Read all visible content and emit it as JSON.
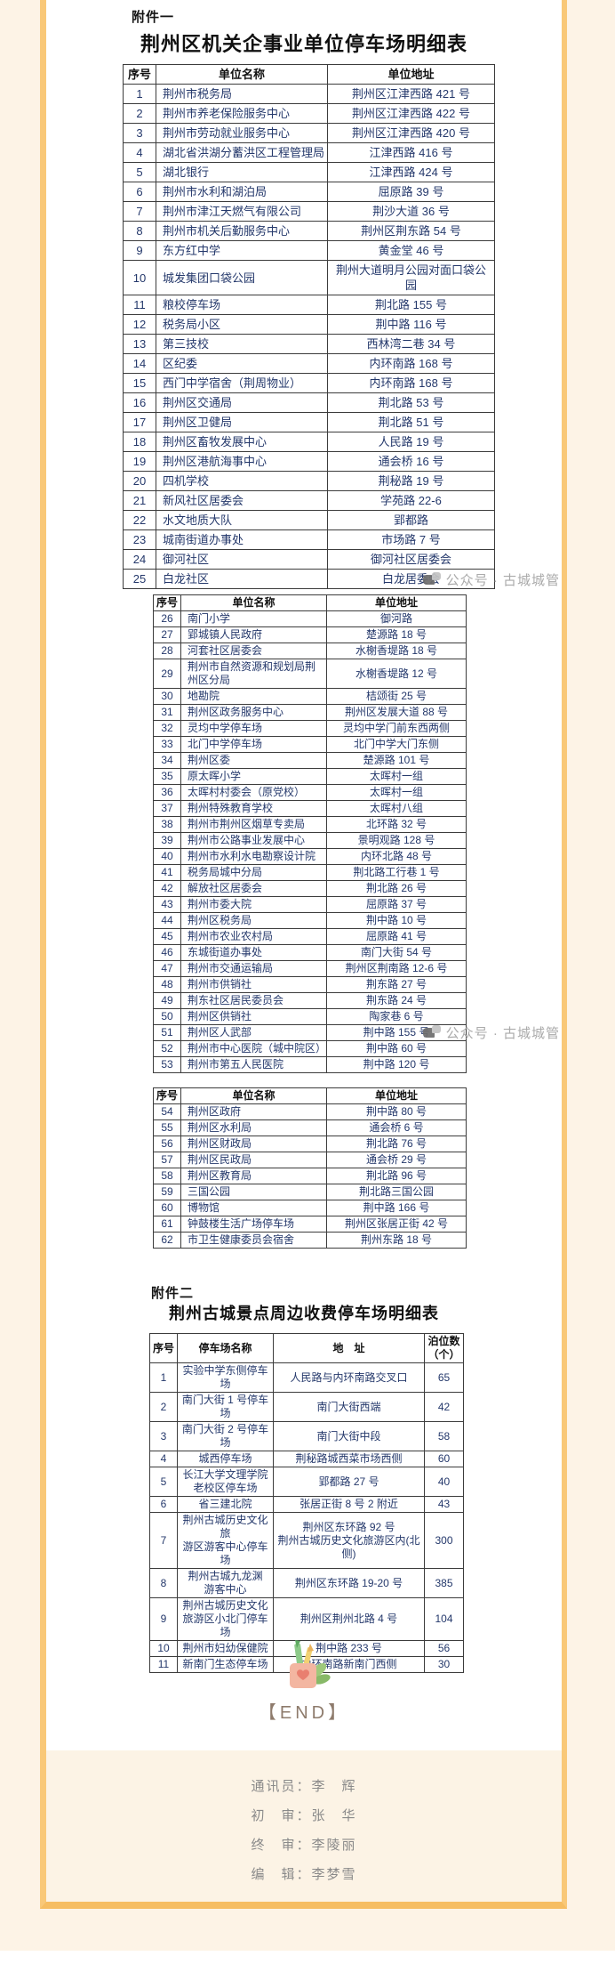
{
  "attachment1": {
    "label": "附件一",
    "title": "荆州区机关企事业单位停车场明细表"
  },
  "attachment2": {
    "label": "附件二",
    "title": "荆州古城景点周边收费停车场明细表"
  },
  "unit_table_headers": [
    "序号",
    "单位名称",
    "单位地址"
  ],
  "table1_rows": [
    [
      "1",
      "荆州市税务局",
      "荆州区江津西路 421 号"
    ],
    [
      "2",
      "荆州市养老保险服务中心",
      "荆州区江津西路 422 号"
    ],
    [
      "3",
      "荆州市劳动就业服务中心",
      "荆州区江津西路 420 号"
    ],
    [
      "4",
      "湖北省洪湖分蓄洪区工程管理局",
      "江津西路 416 号"
    ],
    [
      "5",
      "湖北银行",
      "江津西路 424 号"
    ],
    [
      "6",
      "荆州市水利和湖泊局",
      "屈原路 39 号"
    ],
    [
      "7",
      "荆州市津江天燃气有限公司",
      "荆沙大道 36 号"
    ],
    [
      "8",
      "荆州市机关后勤服务中心",
      "荆州区荆东路 54 号"
    ],
    [
      "9",
      "东方红中学",
      "黄金堂 46 号"
    ],
    [
      "10",
      "城发集团口袋公园",
      "荆州大道明月公园对面口袋公园"
    ],
    [
      "11",
      "粮校停车场",
      "荆北路 155 号"
    ],
    [
      "12",
      "税务局小区",
      "荆中路 116 号"
    ],
    [
      "13",
      "第三技校",
      "西林湾二巷 34 号"
    ],
    [
      "14",
      "区纪委",
      "内环南路 168 号"
    ],
    [
      "15",
      "西门中学宿舍（荆周物业）",
      "内环南路 168 号"
    ],
    [
      "16",
      "荆州区交通局",
      "荆北路 53 号"
    ],
    [
      "17",
      "荆州区卫健局",
      "荆北路 51 号"
    ],
    [
      "18",
      "荆州区畜牧发展中心",
      "人民路 19 号"
    ],
    [
      "19",
      "荆州区港航海事中心",
      "通会桥 16 号"
    ],
    [
      "20",
      "四机学校",
      "荆秘路 19 号"
    ],
    [
      "21",
      "新风社区居委会",
      "学苑路 22-6"
    ],
    [
      "22",
      "水文地质大队",
      "郢都路"
    ],
    [
      "23",
      "城南街道办事处",
      "市场路 7 号"
    ],
    [
      "24",
      "御河社区",
      "御河社区居委会"
    ],
    [
      "25",
      "白龙社区",
      "白龙居委会"
    ]
  ],
  "table2_rows": [
    [
      "26",
      "南门小学",
      "御河路"
    ],
    [
      "27",
      "郢城镇人民政府",
      "楚源路 18 号"
    ],
    [
      "28",
      "河套社区居委会",
      "水榭香堤路 18 号"
    ],
    [
      "29",
      "荆州市自然资源和规划局荆州区分局",
      "水榭香堤路 12 号"
    ],
    [
      "30",
      "地勘院",
      "桔颂街 25 号"
    ],
    [
      "31",
      "荆州区政务服务中心",
      "荆州区发展大道 88 号"
    ],
    [
      "32",
      "灵均中学停车场",
      "灵均中学门前东西两侧"
    ],
    [
      "33",
      "北门中学停车场",
      "北门中学大门东侧"
    ],
    [
      "34",
      "荆州区委",
      "楚源路 101 号"
    ],
    [
      "35",
      "原太晖小学",
      "太晖村一组"
    ],
    [
      "36",
      "太晖村村委会（原党校）",
      "太晖村一组"
    ],
    [
      "37",
      "荆州特殊教育学校",
      "太晖村八组"
    ],
    [
      "38",
      "荆州市荆州区烟草专卖局",
      "北环路 32 号"
    ],
    [
      "39",
      "荆州市公路事业发展中心",
      "景明观路 128 号"
    ],
    [
      "40",
      "荆州市水利水电勘察设计院",
      "内环北路 48 号"
    ],
    [
      "41",
      "税务局城中分局",
      "荆北路工行巷 1 号"
    ],
    [
      "42",
      "解放社区居委会",
      "荆北路 26 号"
    ],
    [
      "43",
      "荆州市委大院",
      "屈原路 37 号"
    ],
    [
      "44",
      "荆州区税务局",
      "荆中路 10 号"
    ],
    [
      "45",
      "荆州市农业农村局",
      "屈原路 41 号"
    ],
    [
      "46",
      "东城街道办事处",
      "南门大街 54 号"
    ],
    [
      "47",
      "荆州市交通运输局",
      "荆州区荆南路 12-6 号"
    ],
    [
      "48",
      "荆州市供销社",
      "荆东路 27 号"
    ],
    [
      "49",
      "荆东社区居民委员会",
      "荆东路 24 号"
    ],
    [
      "50",
      "荆州区供销社",
      "陶家巷 6 号"
    ],
    [
      "51",
      "荆州区人武部",
      "荆中路 155 号"
    ],
    [
      "52",
      "荆州市中心医院（城中院区）",
      "荆中路 60 号"
    ],
    [
      "53",
      "荆州市第五人民医院",
      "荆中路 120 号"
    ]
  ],
  "table3_rows": [
    [
      "54",
      "荆州区政府",
      "荆中路 80 号"
    ],
    [
      "55",
      "荆州区水利局",
      "通会桥 6 号"
    ],
    [
      "56",
      "荆州区财政局",
      "荆北路 76 号"
    ],
    [
      "57",
      "荆州区民政局",
      "通会桥 29 号"
    ],
    [
      "58",
      "荆州区教育局",
      "荆北路 96 号"
    ],
    [
      "59",
      "三国公园",
      "荆北路三国公园"
    ],
    [
      "60",
      "博物馆",
      "荆中路 166 号"
    ],
    [
      "61",
      "钟鼓楼生活广场停车场",
      "荆州区张居正街 42 号"
    ],
    [
      "62",
      "市卫生健康委员会宿舍",
      "荆州东路 18 号"
    ]
  ],
  "paid_table_headers": [
    "序号",
    "停车场名称",
    "地　址",
    "泊位数\n（个）"
  ],
  "table4_rows": [
    [
      "1",
      "实验中学东侧停车场",
      "人民路与内环南路交叉口",
      "65"
    ],
    [
      "2",
      "南门大街 1 号停车场",
      "南门大街西端",
      "42"
    ],
    [
      "3",
      "南门大街 2 号停车场",
      "南门大街中段",
      "58"
    ],
    [
      "4",
      "城西停车场",
      "荆秘路城西菜市场西侧",
      "60"
    ],
    [
      "5",
      "长江大学文理学院\n老校区停车场",
      "郢都路 27 号",
      "40"
    ],
    [
      "6",
      "省三建北院",
      "张居正街 8 号 2 附近",
      "43"
    ],
    [
      "7",
      "荆州古城历史文化旅\n游区游客中心停车场",
      "荆州区东环路 92 号\n荆州古城历史文化旅游区内(北侧)",
      "300"
    ],
    [
      "8",
      "荆州古城九龙渊\n游客中心",
      "荆州区东环路 19-20 号",
      "385"
    ],
    [
      "9",
      "荆州古城历史文化\n旅游区小北门停车场",
      "荆州区荆州北路 4 号",
      "104"
    ],
    [
      "10",
      "荆州市妇幼保健院",
      "荆中路 233 号",
      "56"
    ],
    [
      "11",
      "新南门生态停车场",
      "内环南路新南门西侧",
      "30"
    ]
  ],
  "watermark": {
    "text": "公众号 · 古城城管"
  },
  "end": {
    "label": "【END】"
  },
  "credits": [
    "通讯员：李　辉",
    "初　审：张　华",
    "终　审：李陵丽",
    "编　辑：李梦雪"
  ]
}
